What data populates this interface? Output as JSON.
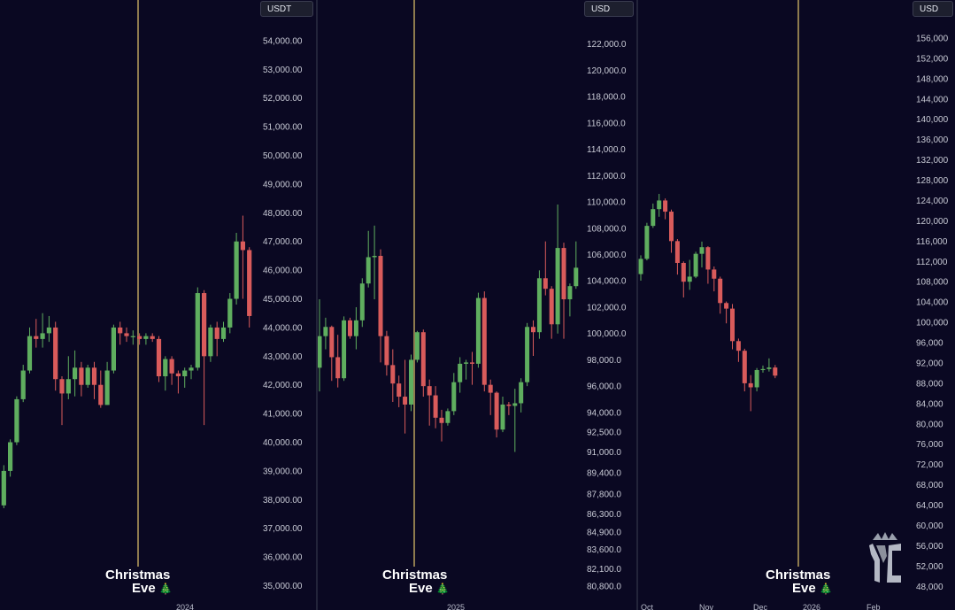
{
  "colors": {
    "background": "#0a0822",
    "up": "#5fae5f",
    "down": "#d95b5b",
    "marker_line": "#8d7a4e"
  },
  "annotation": {
    "line1": "Christmas",
    "line2": "Eve",
    "tree_icon": "christmas-tree-icon"
  },
  "chart_data": [
    {
      "type": "candlestick",
      "currency_label": "USDT",
      "x_axis_labels": [
        "2024"
      ],
      "ylim": [
        34800,
        54800
      ],
      "y_ticks": [
        35000,
        36000,
        37000,
        38000,
        39000,
        40000,
        41000,
        42000,
        43000,
        44000,
        45000,
        46000,
        47000,
        48000,
        49000,
        50000,
        51000,
        52000,
        53000,
        54000
      ],
      "y_tick_labels": [
        "35,000.00",
        "36,000.00",
        "37,000.00",
        "38,000.00",
        "39,000.00",
        "40,000.00",
        "41,000.00",
        "42,000.00",
        "43,000.00",
        "44,000.00",
        "45,000.00",
        "46,000.00",
        "47,000.00",
        "48,000.00",
        "49,000.00",
        "50,000.00",
        "51,000.00",
        "52,000.00",
        "53,000.00",
        "54,000.00"
      ],
      "marker_index": 25,
      "candles": [
        [
          37300,
          37800,
          37100,
          38000
        ],
        [
          37800,
          39000,
          37700,
          39200
        ],
        [
          39000,
          40000,
          38800,
          40100
        ],
        [
          40000,
          41500,
          39900,
          41600
        ],
        [
          41500,
          42500,
          41400,
          42700
        ],
        [
          42500,
          43700,
          42400,
          44000
        ],
        [
          43700,
          43600,
          43300,
          44300
        ],
        [
          43600,
          43800,
          43300,
          44500
        ],
        [
          43800,
          44000,
          43500,
          44400
        ],
        [
          44000,
          42200,
          41800,
          44200
        ],
        [
          42200,
          41700,
          40600,
          42300
        ],
        [
          41700,
          42200,
          41500,
          43000
        ],
        [
          42200,
          42600,
          41600,
          43200
        ],
        [
          42600,
          42000,
          41600,
          42800
        ],
        [
          42000,
          42600,
          41900,
          42700
        ],
        [
          42600,
          42000,
          41500,
          42800
        ],
        [
          42000,
          41300,
          41200,
          42500
        ],
        [
          41300,
          42500,
          41300,
          42800
        ],
        [
          42500,
          44000,
          42400,
          44100
        ],
        [
          44000,
          43800,
          43400,
          44200
        ],
        [
          43800,
          43700,
          43500,
          44000
        ],
        [
          43700,
          43700,
          43400,
          43900
        ],
        [
          43700,
          43600,
          43400,
          43800
        ],
        [
          43600,
          43700,
          43400,
          43800
        ],
        [
          43700,
          43600,
          43500,
          43800
        ],
        [
          43600,
          42300,
          42100,
          43700
        ],
        [
          42300,
          42900,
          41800,
          43000
        ],
        [
          42900,
          42400,
          42000,
          43000
        ],
        [
          42400,
          42300,
          41700,
          42500
        ],
        [
          42300,
          42500,
          41900,
          42600
        ],
        [
          42500,
          42600,
          42200,
          42700
        ],
        [
          42600,
          45200,
          42500,
          45400
        ],
        [
          45200,
          43000,
          40600,
          45300
        ],
        [
          43000,
          44000,
          42800,
          44100
        ],
        [
          44000,
          43600,
          43000,
          44200
        ],
        [
          43600,
          44000,
          43500,
          44200
        ],
        [
          44000,
          45000,
          43800,
          45200
        ],
        [
          45000,
          47000,
          44800,
          47300
        ],
        [
          47000,
          46700,
          45000,
          47900
        ],
        [
          46700,
          44400,
          44000,
          46800
        ]
      ]
    },
    {
      "type": "candlestick",
      "currency_label": "USD",
      "x_axis_labels": [
        "2025"
      ],
      "ylim": [
        80400,
        124000
      ],
      "y_ticks": [
        80800,
        82100,
        83600,
        84900,
        86300,
        87800,
        89400,
        91000,
        92500,
        94000,
        96000,
        98000,
        100000,
        102000,
        104000,
        106000,
        108000,
        110000,
        112000,
        114000,
        116000,
        118000,
        120000,
        122000
      ],
      "y_tick_labels": [
        "80,800.0",
        "82,100.0",
        "83,600.0",
        "84,900.0",
        "86,300.0",
        "87,800.0",
        "89,400.0",
        "91,000.0",
        "92,500.0",
        "94,000.0",
        "96,000.0",
        "98,000.0",
        "100,000.0",
        "102,000.0",
        "104,000.0",
        "106,000.0",
        "108,000.0",
        "110,000.0",
        "112,000.0",
        "114,000.0",
        "116,000.0",
        "118,000.0",
        "120,000.0",
        "122,000.0"
      ],
      "marker_index": 17,
      "candles": [
        [
          97400,
          99800,
          95600,
          102600
        ],
        [
          99800,
          100500,
          98800,
          101200
        ],
        [
          100500,
          98200,
          96400,
          100600
        ],
        [
          98200,
          96600,
          95900,
          99900
        ],
        [
          96600,
          101000,
          96400,
          101300
        ],
        [
          101000,
          99800,
          99600,
          101200
        ],
        [
          99800,
          101000,
          98800,
          102000
        ],
        [
          101000,
          103800,
          100500,
          104200
        ],
        [
          103800,
          105800,
          103500,
          107800
        ],
        [
          105800,
          105900,
          102600,
          108200
        ],
        [
          105900,
          99800,
          97800,
          106400
        ],
        [
          99800,
          97600,
          96800,
          100200
        ],
        [
          97600,
          96200,
          94800,
          98800
        ],
        [
          96200,
          95200,
          94400,
          96800
        ],
        [
          95200,
          94600,
          92400,
          98000
        ],
        [
          94600,
          98000,
          94100,
          98400
        ],
        [
          98000,
          100100,
          97800,
          100200
        ],
        [
          100100,
          96000,
          95200,
          100300
        ],
        [
          96000,
          95300,
          93000,
          96500
        ],
        [
          95300,
          93600,
          92800,
          96000
        ],
        [
          93600,
          93200,
          91800,
          94200
        ],
        [
          93200,
          94100,
          93000,
          94300
        ],
        [
          94100,
          96300,
          93800,
          97000
        ],
        [
          96300,
          97700,
          95500,
          98200
        ],
        [
          97700,
          97800,
          96500,
          98000
        ],
        [
          97800,
          97700,
          96100,
          98600
        ],
        [
          97700,
          102700,
          97400,
          103100
        ],
        [
          102700,
          96100,
          95600,
          103200
        ],
        [
          96100,
          95500,
          93800,
          96500
        ],
        [
          95500,
          92700,
          92100,
          95600
        ],
        [
          92700,
          94600,
          92500,
          95200
        ],
        [
          94600,
          94500,
          93800,
          94800
        ],
        [
          94500,
          94700,
          91000,
          95800
        ],
        [
          94700,
          96300,
          94000,
          96600
        ],
        [
          96300,
          100500,
          96000,
          100800
        ],
        [
          100500,
          100100,
          98300,
          101000
        ],
        [
          100100,
          104200,
          99600,
          104800
        ],
        [
          104200,
          103400,
          102900,
          107000
        ],
        [
          103400,
          100700,
          99600,
          103600
        ],
        [
          100700,
          106500,
          100000,
          109800
        ],
        [
          106500,
          102600,
          99600,
          106900
        ],
        [
          102600,
          103600,
          101300,
          103800
        ],
        [
          103600,
          105000,
          103400,
          107000
        ]
      ]
    },
    {
      "type": "candlestick",
      "currency_label": "USD",
      "x_axis_labels": [
        "Oct",
        "Nov",
        "Dec",
        "2026",
        "Feb"
      ],
      "ylim": [
        47000,
        160000
      ],
      "y_ticks": [
        48000,
        52000,
        56000,
        60000,
        64000,
        68000,
        72000,
        76000,
        80000,
        84000,
        88000,
        92000,
        96000,
        100000,
        104000,
        108000,
        112000,
        116000,
        120000,
        124000,
        128000,
        132000,
        136000,
        140000,
        144000,
        148000,
        152000,
        156000
      ],
      "y_tick_labels": [
        "48,000",
        "52,000",
        "56,000",
        "60,000",
        "64,000",
        "68,000",
        "72,000",
        "76,000",
        "80,000",
        "84,000",
        "88,000",
        "92,000",
        "96,000",
        "100,000",
        "104,000",
        "108,000",
        "112,000",
        "116,000",
        "120,000",
        "124,000",
        "128,000",
        "132,000",
        "136,000",
        "140,000",
        "144,000",
        "148,000",
        "152,000",
        "156,000"
      ],
      "marker_index": 31,
      "candles": [
        [
          109500,
          112500,
          108200,
          113200
        ],
        [
          112500,
          119000,
          112200,
          119600
        ],
        [
          119000,
          122300,
          118600,
          123400
        ],
        [
          122300,
          124000,
          120800,
          125300
        ],
        [
          124000,
          121800,
          120300,
          124400
        ],
        [
          121800,
          116000,
          113700,
          122200
        ],
        [
          116000,
          111700,
          109400,
          116400
        ],
        [
          111700,
          108000,
          104900,
          112000
        ],
        [
          108000,
          109000,
          106400,
          112300
        ],
        [
          109000,
          113500,
          108700,
          113900
        ],
        [
          113500,
          114800,
          110800,
          115900
        ],
        [
          114800,
          110400,
          107600,
          115000
        ],
        [
          110400,
          108600,
          106100,
          111000
        ],
        [
          108600,
          103800,
          101700,
          109000
        ],
        [
          103800,
          102700,
          99800,
          104100
        ],
        [
          102700,
          96300,
          94700,
          103600
        ],
        [
          96300,
          94400,
          92200,
          96800
        ],
        [
          94400,
          88000,
          86400,
          94800
        ],
        [
          88000,
          87200,
          82500,
          89600
        ],
        [
          87200,
          90600,
          86400,
          91000
        ],
        [
          90600,
          90800,
          90100,
          91500
        ],
        [
          90800,
          91100,
          90300,
          92900
        ],
        [
          91100,
          89500,
          89000,
          91600
        ]
      ]
    }
  ]
}
